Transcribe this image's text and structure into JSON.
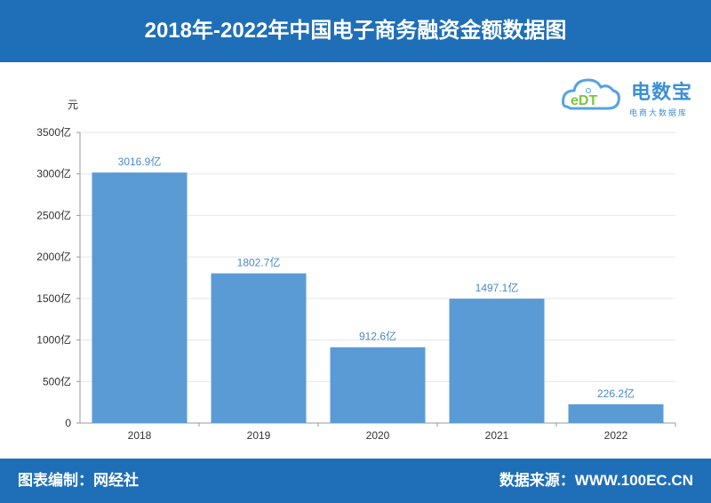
{
  "header": {
    "title": "2018年-2022年中国电子商务融资金额数据图"
  },
  "logo": {
    "name": "电数宝",
    "sub": "电商大数据库",
    "mark": "eDT"
  },
  "footer": {
    "left": "图表编制：网经社",
    "right": "数据来源：WWW.100EC.CN"
  },
  "colors": {
    "bar": "#5b9bd5",
    "header": "#1f6fb8",
    "label": "#4a89c8"
  },
  "chart_data": {
    "type": "bar",
    "categories": [
      "2018",
      "2019",
      "2020",
      "2021",
      "2022"
    ],
    "values": [
      3016.9,
      1802.7,
      912.6,
      1497.1,
      226.2
    ],
    "data_labels": [
      "3016.9亿",
      "1802.7亿",
      "912.6亿",
      "1497.1亿",
      "226.2亿"
    ],
    "yticks": [
      0,
      500,
      1000,
      1500,
      2000,
      2500,
      3000,
      3500
    ],
    "ytick_labels": [
      "0",
      "500亿",
      "1000亿",
      "1500亿",
      "2000亿",
      "2500亿",
      "3000亿",
      "3500亿"
    ],
    "ylabel": "元",
    "ylim": [
      0,
      3500
    ],
    "grid": true
  }
}
